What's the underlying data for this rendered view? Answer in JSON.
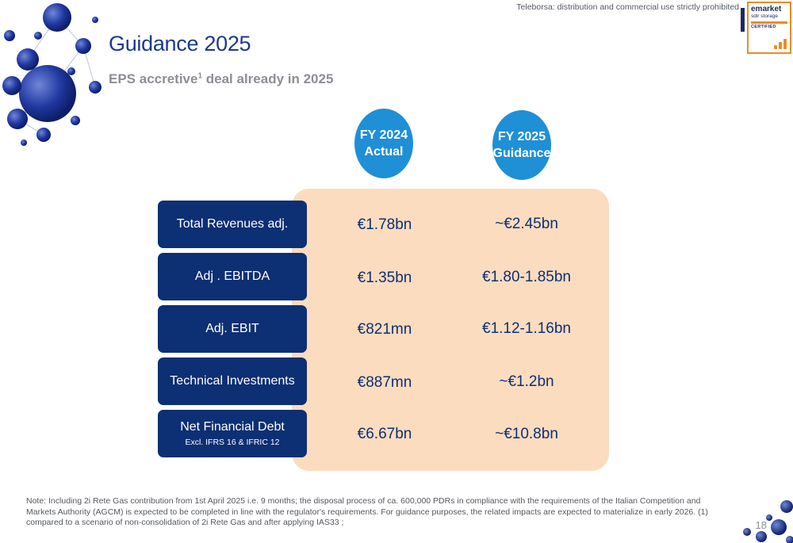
{
  "watermark": "Teleborsa: distribution and commercial use strictly prohibited",
  "certification": {
    "brand": "emarket",
    "line2": "sdir storage",
    "line3": "CERTIFIED",
    "accent_color": "#f08a24"
  },
  "title": "Guidance 2025",
  "subtitle": {
    "before": "EPS accretive",
    "sup": "1",
    "after": " deal already in 2025"
  },
  "columns": [
    {
      "line1": "FY 2024",
      "line2": "Actual"
    },
    {
      "line1": "FY 2025",
      "line2": "Guidance"
    }
  ],
  "rows": [
    {
      "label": "Total Revenues adj.",
      "sublabel": "",
      "fy2024": "€1.78bn",
      "fy2025": "~€2.45bn"
    },
    {
      "label": "Adj . EBITDA",
      "sublabel": "",
      "fy2024": "€1.35bn",
      "fy2025": "€1.80-1.85bn"
    },
    {
      "label": "Adj. EBIT",
      "sublabel": "",
      "fy2024": "€821mn",
      "fy2025": "€1.12-1.16bn"
    },
    {
      "label": "Technical Investments",
      "sublabel": "",
      "fy2024": "€887mn",
      "fy2025": "~€1.2bn"
    },
    {
      "label": "Net Financial Debt",
      "sublabel": "Excl. IFRS 16 & IFRIC 12",
      "fy2024": "€6.67bn",
      "fy2025": "~€10.8bn"
    }
  ],
  "note": "Note: Including 2i Rete Gas contribution from 1st April 2025 i.e. 9 months; the disposal process of ca. 600,000 PDRs in compliance with the requirements of the Italian Competition and Markets Authority (AGCM) is expected to be completed in line with the regulator's requirements. For guidance purposes, the related impacts are expected to materialize in early 2026. (1) compared to a scenario of non-consolidation of 2i Rete Gas and after applying IAS33 ;",
  "page_number": "18",
  "colors": {
    "title": "#1c3a8c",
    "label_box": "#0d2f73",
    "circle": "#1f8fd6",
    "panel": "#fbdcbf"
  }
}
